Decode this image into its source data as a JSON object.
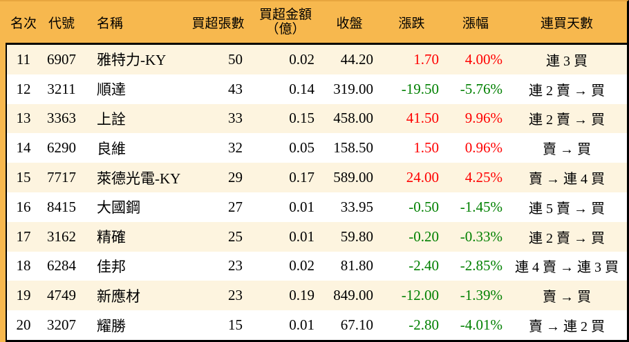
{
  "colors": {
    "page_bg": "#f7b84e",
    "header_bg": "#f7b84e",
    "frame_top": "#e8a63f",
    "row_alt_bg": "#fdf4df",
    "row_bg": "#ffffff",
    "border": "#000000",
    "text": "#000000",
    "up": "#ff0000",
    "down": "#008000"
  },
  "chart_data": {
    "type": "table",
    "title": "",
    "legend": "positive change shown red (up), negative shown green (down); alternating cream/white row stripes",
    "columns": [
      {
        "key": "rank",
        "label": "名次"
      },
      {
        "key": "code",
        "label": "代號"
      },
      {
        "key": "name",
        "label": "名稱"
      },
      {
        "key": "volume",
        "label": "買超張數"
      },
      {
        "key": "amount",
        "label": "買超金額",
        "sublabel": "（億）"
      },
      {
        "key": "close",
        "label": "收盤"
      },
      {
        "key": "change",
        "label": "漲跌"
      },
      {
        "key": "pct",
        "label": "漲幅"
      },
      {
        "key": "streak",
        "label": "連買天數"
      }
    ],
    "rows": [
      {
        "rank": "11",
        "code": "6907",
        "name": "雅特力-KY",
        "volume": "50",
        "amount": "0.02",
        "close": "44.20",
        "change": "1.70",
        "pct": "4.00%",
        "streak": "連 3 買",
        "direction": "up"
      },
      {
        "rank": "12",
        "code": "3211",
        "name": "順達",
        "volume": "43",
        "amount": "0.14",
        "close": "319.00",
        "change": "-19.50",
        "pct": "-5.76%",
        "streak": "連 2 賣 → 買",
        "direction": "down"
      },
      {
        "rank": "13",
        "code": "3363",
        "name": "上詮",
        "volume": "33",
        "amount": "0.15",
        "close": "458.00",
        "change": "41.50",
        "pct": "9.96%",
        "streak": "連 2 賣 → 買",
        "direction": "up"
      },
      {
        "rank": "14",
        "code": "6290",
        "name": "良維",
        "volume": "32",
        "amount": "0.05",
        "close": "158.50",
        "change": "1.50",
        "pct": "0.96%",
        "streak": "賣 → 買",
        "direction": "up"
      },
      {
        "rank": "15",
        "code": "7717",
        "name": "萊德光電-KY",
        "volume": "29",
        "amount": "0.17",
        "close": "589.00",
        "change": "24.00",
        "pct": "4.25%",
        "streak": "賣 → 連 4 買",
        "direction": "up"
      },
      {
        "rank": "16",
        "code": "8415",
        "name": "大國鋼",
        "volume": "27",
        "amount": "0.01",
        "close": "33.95",
        "change": "-0.50",
        "pct": "-1.45%",
        "streak": "連 5 賣 → 買",
        "direction": "down"
      },
      {
        "rank": "17",
        "code": "3162",
        "name": "精確",
        "volume": "25",
        "amount": "0.01",
        "close": "59.80",
        "change": "-0.20",
        "pct": "-0.33%",
        "streak": "連 2 賣 → 買",
        "direction": "down"
      },
      {
        "rank": "18",
        "code": "6284",
        "name": "佳邦",
        "volume": "23",
        "amount": "0.02",
        "close": "81.80",
        "change": "-2.40",
        "pct": "-2.85%",
        "streak": "連 4 賣 → 連 3 買",
        "direction": "down"
      },
      {
        "rank": "19",
        "code": "4749",
        "name": "新應材",
        "volume": "23",
        "amount": "0.19",
        "close": "849.00",
        "change": "-12.00",
        "pct": "-1.39%",
        "streak": "賣 → 買",
        "direction": "down"
      },
      {
        "rank": "20",
        "code": "3207",
        "name": "耀勝",
        "volume": "15",
        "amount": "0.01",
        "close": "67.10",
        "change": "-2.80",
        "pct": "-4.01%",
        "streak": "賣 → 連 2 買",
        "direction": "down"
      }
    ]
  }
}
